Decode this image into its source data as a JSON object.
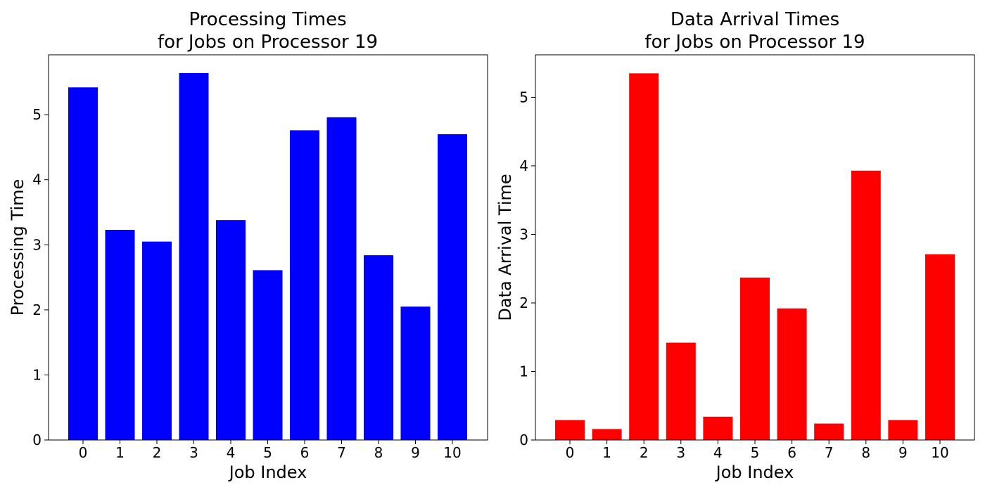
{
  "chart_data": [
    {
      "type": "bar",
      "title_line1": "Processing Times",
      "title_line2": "for Jobs on Processor 19",
      "xlabel": "Job Index",
      "ylabel": "Processing Time",
      "categories": [
        "0",
        "1",
        "2",
        "3",
        "4",
        "5",
        "6",
        "7",
        "8",
        "9",
        "10"
      ],
      "values": [
        5.42,
        3.23,
        3.05,
        5.64,
        3.38,
        2.61,
        4.76,
        4.96,
        2.84,
        2.05,
        4.7
      ],
      "color": "#0000ff",
      "ylim": [
        0,
        5.92
      ],
      "yticks": [
        0,
        1,
        2,
        3,
        4,
        5
      ],
      "grid": false
    },
    {
      "type": "bar",
      "title_line1": "Data Arrival Times",
      "title_line2": "for Jobs on Processor 19",
      "xlabel": "Job Index",
      "ylabel": "Data Arrival Time",
      "categories": [
        "0",
        "1",
        "2",
        "3",
        "4",
        "5",
        "6",
        "7",
        "8",
        "9",
        "10"
      ],
      "values": [
        0.29,
        0.16,
        5.35,
        1.42,
        0.34,
        2.37,
        1.92,
        0.24,
        3.93,
        0.29,
        2.71
      ],
      "color": "#ff0000",
      "ylim": [
        0,
        5.62
      ],
      "yticks": [
        0,
        1,
        2,
        3,
        4,
        5
      ],
      "grid": false
    }
  ]
}
